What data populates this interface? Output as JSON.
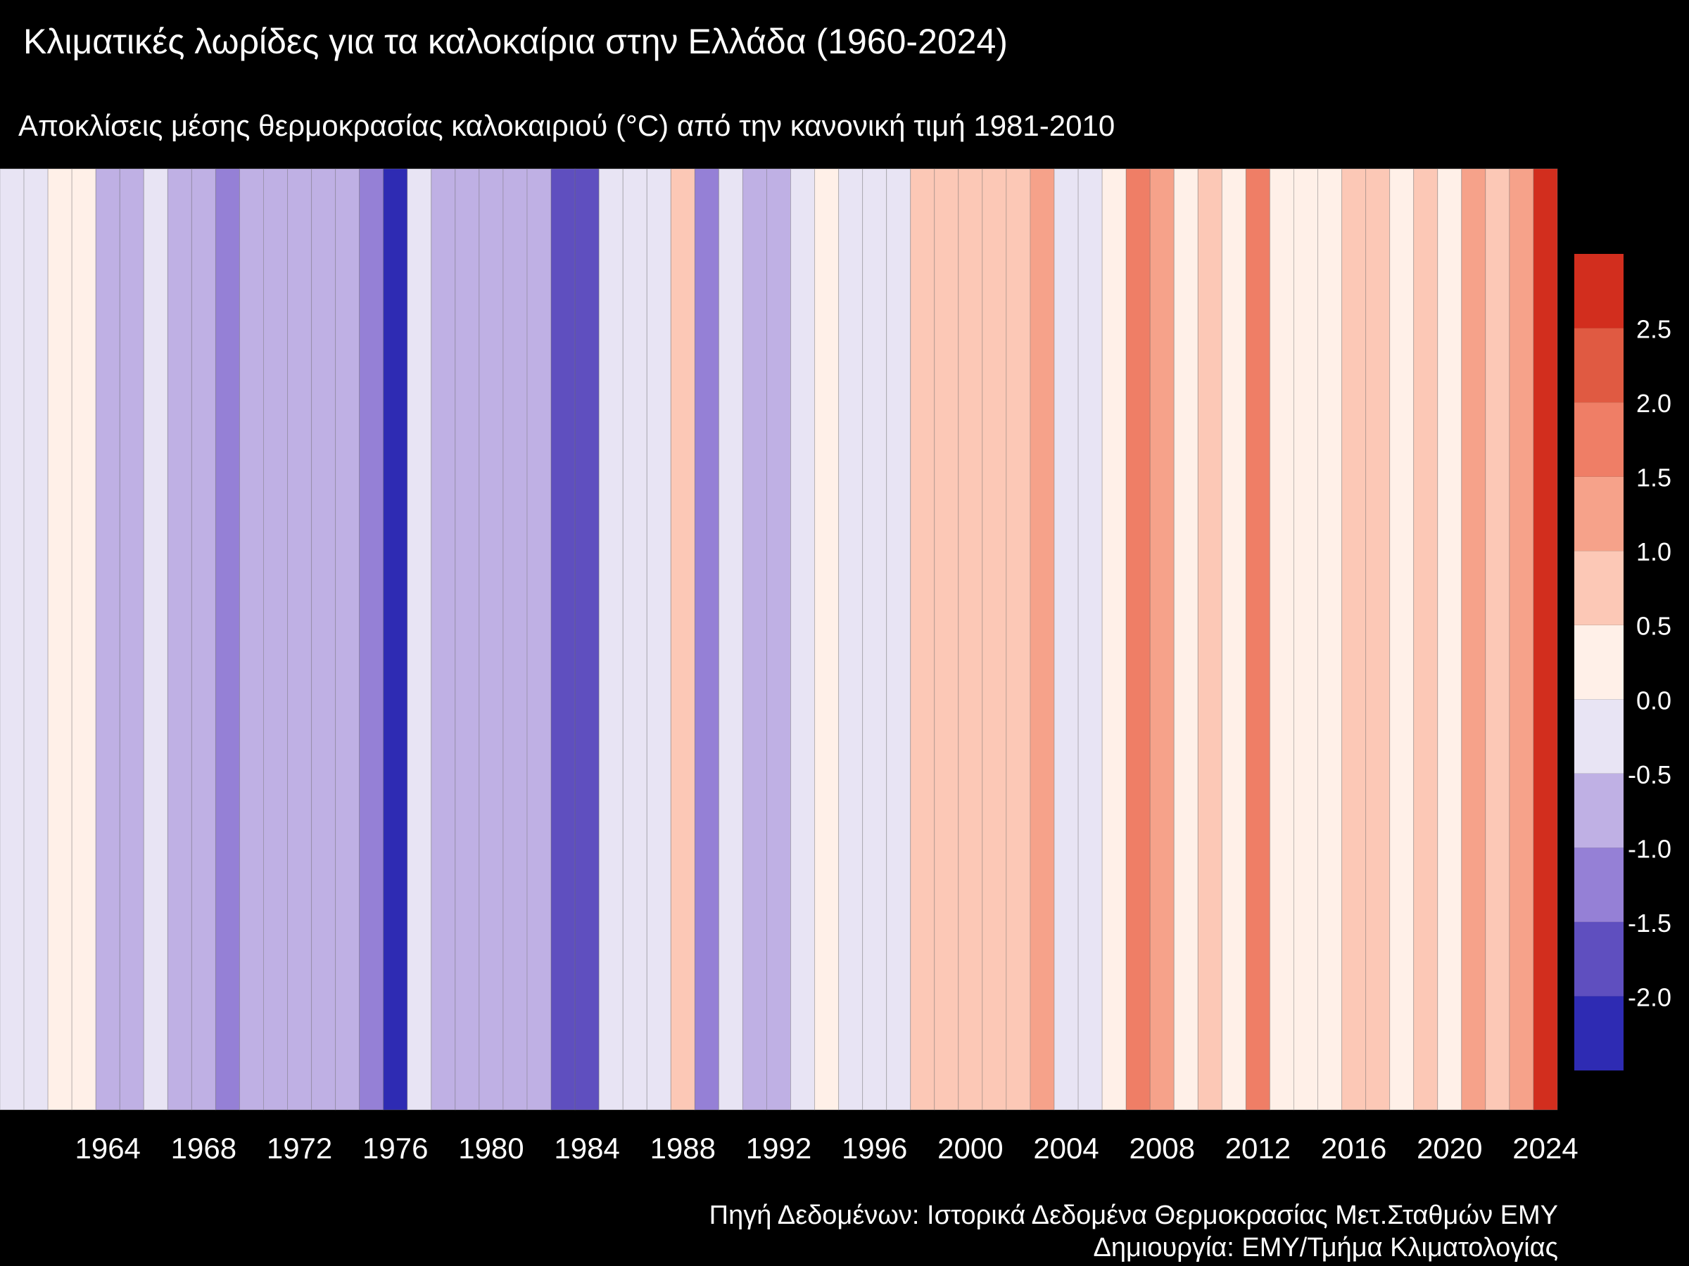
{
  "chart_data": {
    "type": "heatmap",
    "title": "Κλιματικές λωρίδες για τα καλοκαίρια στην Ελλάδα (1960-2024)",
    "subtitle": "Αποκλίσεις μέσης θερμοκρασίας καλοκαιριού (°C) από την κανονική τιμή 1981-2010",
    "x": [
      1960,
      1961,
      1962,
      1963,
      1964,
      1965,
      1966,
      1967,
      1968,
      1969,
      1970,
      1971,
      1972,
      1973,
      1974,
      1975,
      1976,
      1977,
      1978,
      1979,
      1980,
      1981,
      1982,
      1983,
      1984,
      1985,
      1986,
      1987,
      1988,
      1989,
      1990,
      1991,
      1992,
      1993,
      1994,
      1995,
      1996,
      1997,
      1998,
      1999,
      2000,
      2001,
      2002,
      2003,
      2004,
      2005,
      2006,
      2007,
      2008,
      2009,
      2010,
      2011,
      2012,
      2013,
      2014,
      2015,
      2016,
      2017,
      2018,
      2019,
      2020,
      2021,
      2022,
      2023,
      2024
    ],
    "values": [
      -0.25,
      -0.25,
      0.25,
      0.25,
      -0.75,
      -0.75,
      -0.25,
      -0.75,
      -0.75,
      -1.25,
      -0.75,
      -0.75,
      -0.75,
      -0.75,
      -0.75,
      -1.25,
      -2.25,
      -0.25,
      -0.75,
      -0.75,
      -0.75,
      -0.75,
      -0.75,
      -1.75,
      -1.75,
      -0.25,
      -0.25,
      -0.25,
      0.75,
      -1.25,
      -0.25,
      -0.75,
      -0.75,
      -0.25,
      0.25,
      -0.25,
      -0.25,
      -0.25,
      0.75,
      0.75,
      0.75,
      0.75,
      0.75,
      1.25,
      -0.25,
      -0.25,
      0.25,
      1.75,
      1.25,
      0.25,
      0.75,
      0.25,
      1.75,
      0.25,
      0.25,
      0.25,
      0.75,
      0.75,
      0.25,
      0.75,
      0.25,
      1.25,
      0.75,
      1.25,
      2.75
    ],
    "x_ticks": [
      "1964",
      "1968",
      "1972",
      "1976",
      "1980",
      "1984",
      "1988",
      "1992",
      "1996",
      "2000",
      "2004",
      "2008",
      "2012",
      "2016",
      "2020",
      "2024"
    ],
    "colorbar": {
      "boundaries": [
        -2.5,
        -2.0,
        -1.5,
        -1.0,
        -0.5,
        0.0,
        0.5,
        1.0,
        1.5,
        2.0,
        2.5,
        3.0
      ],
      "colors": [
        "#2e2bb3",
        "#5f4fbf",
        "#9580d6",
        "#bfb0e4",
        "#e8e4f4",
        "#fff0e8",
        "#fcc8b6",
        "#f6a28a",
        "#ef7e66",
        "#e05a42",
        "#d22e1e"
      ],
      "tick_labels": [
        "-2.0",
        "-1.5",
        "-1.0",
        "-0.5",
        "0.0",
        "0.5",
        "1.0",
        "1.5",
        "2.0",
        "2.5"
      ]
    }
  },
  "caption": {
    "source": "Πηγή Δεδομένων: Ιστορικά Δεδομένα Θερμοκρασίας Μετ.Σταθμών ΕΜΥ",
    "credit": "Δημιουργία: ΕΜΥ/Τμήμα Κλιματολογίας"
  }
}
